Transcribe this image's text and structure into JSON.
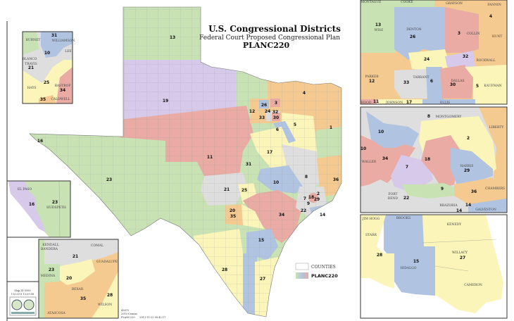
{
  "title": {
    "line1": "U.S. Congressional Districts",
    "line2": "Federal Court Proposed Congressional Plan",
    "line3": "PLANC220"
  },
  "colors": {
    "green": "#c9e2b3",
    "purple": "#d6c9e9",
    "red": "#e9aba3",
    "blue": "#b0c4e2",
    "yellow": "#fbf5b9",
    "orange": "#f5ca90",
    "gray": "#dedede"
  },
  "main_map": {
    "district_labels": [
      "13",
      "19",
      "11",
      "12",
      "26",
      "3",
      "24",
      "32",
      "33",
      "30",
      "4",
      "5",
      "6",
      "1",
      "17",
      "31",
      "8",
      "36",
      "10",
      "21",
      "25",
      "2",
      "18",
      "29",
      "7",
      "9",
      "22",
      "14",
      "20",
      "35",
      "34",
      "15",
      "28",
      "27",
      "23",
      "16"
    ]
  },
  "insets": {
    "austin": {
      "counties": [
        "BURNET",
        "WILLIAMSON",
        "LEE",
        "BLANCO",
        "TRAVIS",
        "HAYS",
        "BASTROP",
        "CALDWELL"
      ],
      "districts": [
        "31",
        "10",
        "21",
        "25",
        "34",
        "35"
      ]
    },
    "el_paso": {
      "counties": [
        "EL PASO",
        "HUDSPETH"
      ],
      "districts": [
        "16",
        "23"
      ]
    },
    "san_antonio": {
      "counties": [
        "KENDALL",
        "BANDERA",
        "COMAL",
        "GUADALUPE",
        "MEDINA",
        "BEXAR",
        "WILSON",
        "ATASCOSA"
      ],
      "districts": [
        "21",
        "23",
        "20",
        "35",
        "28"
      ]
    },
    "dallas": {
      "counties": [
        "MONTAGUE",
        "COOKE",
        "GRAYSON",
        "FANNIN",
        "WISE",
        "DENTON",
        "COLLIN",
        "HUNT",
        "ROCKWALL",
        "PARKER",
        "TARRANT",
        "DALLAS",
        "KAUFMAN",
        "HOOD",
        "JOHNSON",
        "ELLIS"
      ],
      "districts": [
        "4",
        "13",
        "26",
        "3",
        "24",
        "32",
        "12",
        "33",
        "6",
        "30",
        "5",
        "11",
        "17"
      ]
    },
    "houston": {
      "counties": [
        "MONTGOMERY",
        "LIBERTY",
        "WALLER",
        "HARRIS",
        "CHAMBERS",
        "FORT",
        "BEND",
        "BRAZORIA",
        "GALVESTON"
      ],
      "districts": [
        "8",
        "10",
        "2",
        "10",
        "34",
        "18",
        "7",
        "29",
        "9",
        "36",
        "22",
        "14",
        "14"
      ]
    },
    "valley": {
      "counties": [
        "JIM HOGG",
        "BROOKS",
        "KENEDY",
        "STARR",
        "HIDALGO",
        "WILLACY",
        "CAMERON"
      ],
      "districts": [
        "28",
        "15",
        "27"
      ]
    }
  },
  "legend": {
    "counties_label": "COUNTIES",
    "plan_label": "PLANC220"
  },
  "stamp": {
    "map_id": "Map ID 5500",
    "date": "11/23/11 13:59:08",
    "logo_text": "Texas Legislative Council"
  },
  "footer": {
    "line1": "43675",
    "line2": "2010 Census",
    "line3": "PLANC220      2011-11-23 09:42:17"
  }
}
